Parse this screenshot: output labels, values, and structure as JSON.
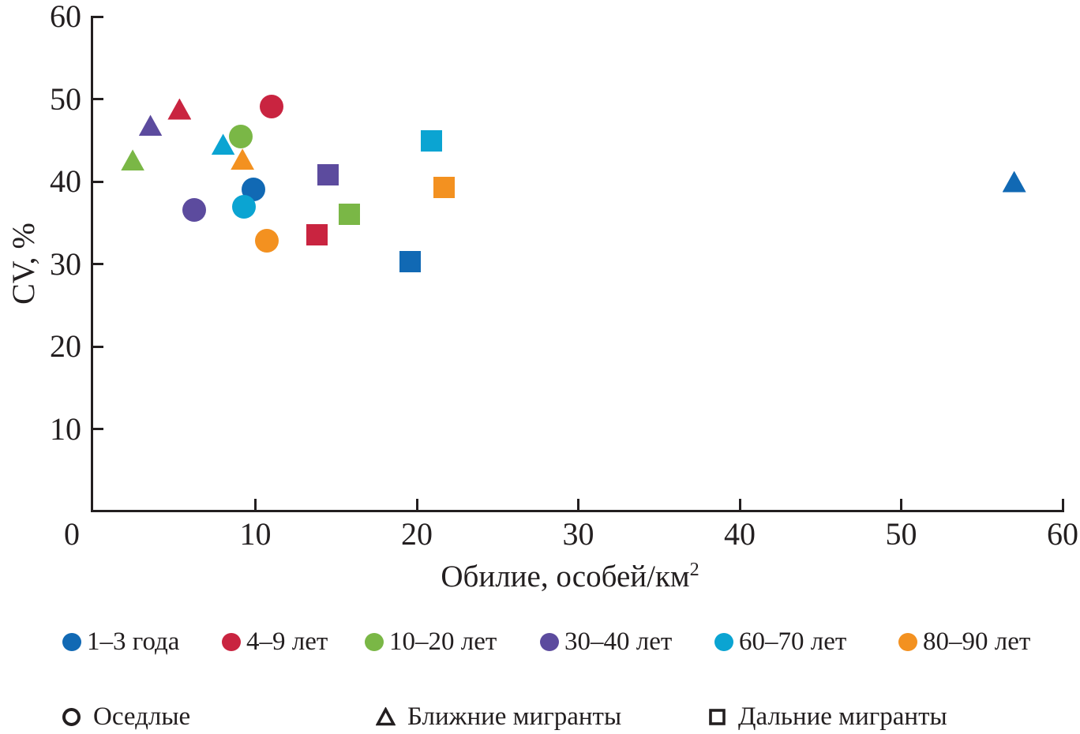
{
  "chart_data": {
    "type": "scatter",
    "xlabel": "Обилие, особей/км",
    "xlabel_sup": "2",
    "ylabel": "CV, %",
    "xlim": [
      0,
      60
    ],
    "ylim": [
      0,
      60
    ],
    "x_ticks": [
      0,
      10,
      20,
      30,
      40,
      50,
      60
    ],
    "y_ticks": [
      10,
      20,
      30,
      40,
      50,
      60
    ],
    "grid": false,
    "legend_position": "bottom",
    "groups": [
      {
        "label": "1–3 года",
        "color": "#1169b4"
      },
      {
        "label": "4–9 лет",
        "color": "#c92440"
      },
      {
        "label": "10–20 лет",
        "color": "#7ab746"
      },
      {
        "label": "30–40 лет",
        "color": "#5c4b9e"
      },
      {
        "label": "60–70 лет",
        "color": "#0ba4d2"
      },
      {
        "label": "80–90 лет",
        "color": "#f39120"
      }
    ],
    "shapes": [
      {
        "label": "Оседлые",
        "shape": "circle"
      },
      {
        "label": "Ближние мигранты",
        "shape": "triangle"
      },
      {
        "label": "Дальние мигранты",
        "shape": "square"
      }
    ],
    "points": [
      {
        "group": 2,
        "shape": "triangle",
        "x": 2.4,
        "y": 42.6
      },
      {
        "group": 3,
        "shape": "triangle",
        "x": 3.5,
        "y": 46.8
      },
      {
        "group": 1,
        "shape": "triangle",
        "x": 5.3,
        "y": 48.8
      },
      {
        "group": 4,
        "shape": "triangle",
        "x": 8.0,
        "y": 44.5
      },
      {
        "group": 2,
        "shape": "circle",
        "x": 9.1,
        "y": 45.5
      },
      {
        "group": 5,
        "shape": "triangle",
        "x": 9.2,
        "y": 42.7
      },
      {
        "group": 1,
        "shape": "circle",
        "x": 11.0,
        "y": 49.1
      },
      {
        "group": 3,
        "shape": "circle",
        "x": 6.2,
        "y": 36.6
      },
      {
        "group": 0,
        "shape": "circle",
        "x": 9.9,
        "y": 39.0
      },
      {
        "group": 4,
        "shape": "circle",
        "x": 9.3,
        "y": 36.9
      },
      {
        "group": 5,
        "shape": "circle",
        "x": 10.7,
        "y": 32.8
      },
      {
        "group": 3,
        "shape": "square",
        "x": 14.5,
        "y": 40.8
      },
      {
        "group": 1,
        "shape": "square",
        "x": 13.8,
        "y": 33.5
      },
      {
        "group": 2,
        "shape": "square",
        "x": 15.8,
        "y": 36.0
      },
      {
        "group": 0,
        "shape": "square",
        "x": 19.6,
        "y": 30.3
      },
      {
        "group": 4,
        "shape": "square",
        "x": 20.9,
        "y": 44.9
      },
      {
        "group": 5,
        "shape": "square",
        "x": 21.7,
        "y": 39.3
      },
      {
        "group": 0,
        "shape": "triangle",
        "x": 57.0,
        "y": 40.0
      }
    ],
    "axis_color": "#231f20"
  }
}
